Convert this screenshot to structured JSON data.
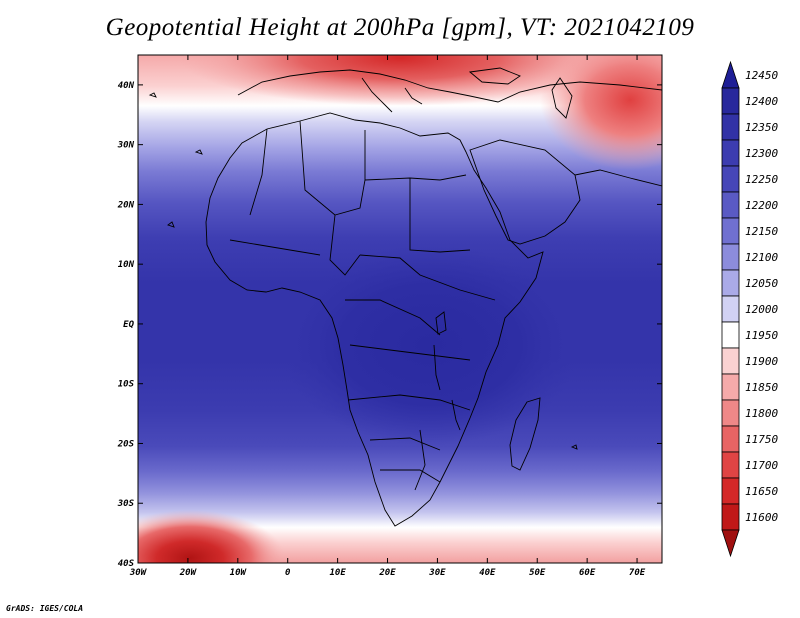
{
  "title": "Geopotential Height at 200hPa [gpm], VT: 2021042109",
  "footer": "GrADS: IGES/COLA",
  "map": {
    "lon_range": [
      -30,
      75
    ],
    "lat_range": [
      -40,
      45
    ],
    "lon_ticks": [
      "30W",
      "20W",
      "10W",
      "0",
      "10E",
      "20E",
      "30E",
      "40E",
      "50E",
      "60E",
      "70E"
    ],
    "lon_values": [
      -30,
      -20,
      -10,
      0,
      10,
      20,
      30,
      40,
      50,
      60,
      70
    ],
    "lat_ticks": [
      "40N",
      "30N",
      "20N",
      "10N",
      "EQ",
      "10S",
      "20S",
      "30S",
      "40S"
    ],
    "lat_values": [
      40,
      30,
      20,
      10,
      0,
      -10,
      -20,
      -30,
      -40
    ]
  },
  "colorbar": {
    "levels": [
      "12450",
      "12400",
      "12350",
      "12300",
      "12250",
      "12200",
      "12150",
      "12100",
      "12050",
      "12000",
      "11950",
      "11900",
      "11850",
      "11800",
      "11750",
      "11700",
      "11650",
      "11600"
    ],
    "colors_top_to_bottom": [
      "#1e1e96",
      "#28289c",
      "#3232a6",
      "#3c3cb0",
      "#4646b8",
      "#5a5ac4",
      "#7070d0",
      "#8c8cdc",
      "#aaaae8",
      "#d2d2f4",
      "#ffffff",
      "#fad2d2",
      "#f5aaaa",
      "#ef8888",
      "#e86464",
      "#e04444",
      "#d42828",
      "#c01818",
      "#a01010"
    ]
  }
}
